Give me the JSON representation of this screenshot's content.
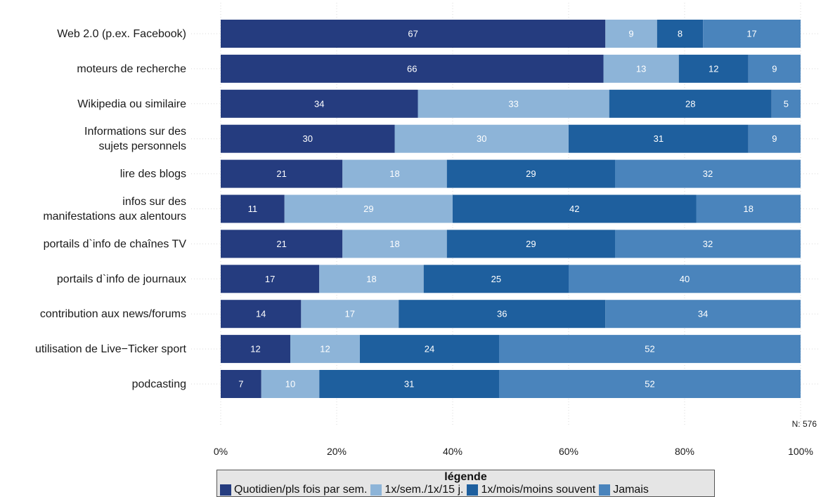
{
  "chart_data": {
    "type": "bar",
    "orientation": "horizontal",
    "stacked": "percent",
    "categories": [
      "Web 2.0 (p.ex. Facebook)",
      "moteurs de recherche",
      "Wikipedia ou similaire",
      "Informations sur des\nsujets personnels",
      "lire des blogs",
      "infos sur des\nmanifestations aux alentours",
      "portails d`info de chaînes TV",
      "portails d`info de journaux",
      "contribution aux news/forums",
      "utilisation de Live−Ticker sport",
      "podcasting"
    ],
    "series": [
      {
        "name": "Quotidien/pls fois par sem.",
        "color": "#253c7f",
        "values": [
          67,
          66,
          34,
          30,
          21,
          11,
          21,
          17,
          14,
          12,
          7
        ]
      },
      {
        "name": "1x/sem./1x/15 j.",
        "color": "#8db4d8",
        "values": [
          9,
          13,
          33,
          30,
          18,
          29,
          18,
          18,
          17,
          12,
          10
        ]
      },
      {
        "name": "1x/mois/moins souvent",
        "color": "#1e5f9e",
        "values": [
          8,
          12,
          28,
          31,
          29,
          42,
          29,
          25,
          36,
          24,
          31
        ]
      },
      {
        "name": "Jamais",
        "color": "#4a84bc",
        "values": [
          17,
          9,
          5,
          9,
          32,
          18,
          32,
          40,
          34,
          52,
          52
        ]
      }
    ],
    "xlim": [
      0,
      100
    ],
    "x_ticks": [
      "0%",
      "20%",
      "40%",
      "60%",
      "80%",
      "100%"
    ],
    "grid": true,
    "note": "N: 576",
    "legend": {
      "title": "légende",
      "position": "bottom"
    }
  }
}
